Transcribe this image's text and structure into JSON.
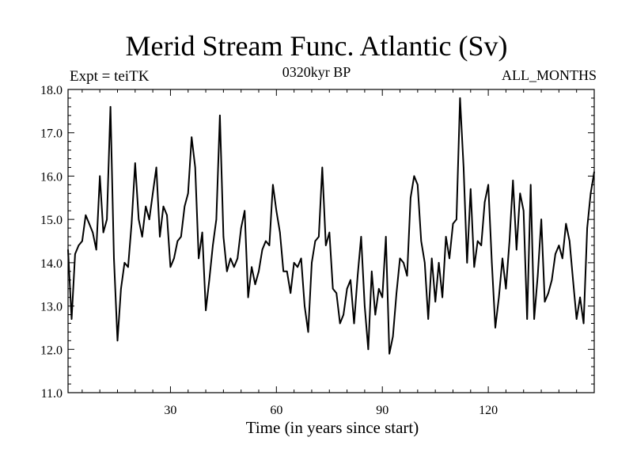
{
  "chart_data": {
    "type": "line",
    "title": "Merid Stream Func. Atlantic (Sv)",
    "subtitle_left": "Expt = teiTK",
    "subtitle_center": "0320kyr BP",
    "subtitle_right": "ALL_MONTHS",
    "xlabel": "Time (in years since start)",
    "ylabel": "",
    "xlim": [
      1,
      150
    ],
    "ylim": [
      11.0,
      18.0
    ],
    "xticks": [
      30,
      60,
      90,
      120
    ],
    "xtick_labels": [
      "30",
      "60",
      "90",
      "120"
    ],
    "yticks": [
      11.0,
      12.0,
      13.0,
      14.0,
      15.0,
      16.0,
      17.0,
      18.0
    ],
    "ytick_labels": [
      "11.0",
      "12.0",
      "13.0",
      "14.0",
      "15.0",
      "16.0",
      "17.0",
      "18.0"
    ],
    "grid": false,
    "series": [
      {
        "name": "Merid Stream Func. Atlantic",
        "color": "#000000",
        "x": [
          1,
          2,
          3,
          4,
          5,
          6,
          7,
          8,
          9,
          10,
          11,
          12,
          13,
          14,
          15,
          16,
          17,
          18,
          19,
          20,
          21,
          22,
          23,
          24,
          25,
          26,
          27,
          28,
          29,
          30,
          31,
          32,
          33,
          34,
          35,
          36,
          37,
          38,
          39,
          40,
          41,
          42,
          43,
          44,
          45,
          46,
          47,
          48,
          49,
          50,
          51,
          52,
          53,
          54,
          55,
          56,
          57,
          58,
          59,
          60,
          61,
          62,
          63,
          64,
          65,
          66,
          67,
          68,
          69,
          70,
          71,
          72,
          73,
          74,
          75,
          76,
          77,
          78,
          79,
          80,
          81,
          82,
          83,
          84,
          85,
          86,
          87,
          88,
          89,
          90,
          91,
          92,
          93,
          94,
          95,
          96,
          97,
          98,
          99,
          100,
          101,
          102,
          103,
          104,
          105,
          106,
          107,
          108,
          109,
          110,
          111,
          112,
          113,
          114,
          115,
          116,
          117,
          118,
          119,
          120,
          121,
          122,
          123,
          124,
          125,
          126,
          127,
          128,
          129,
          130,
          131,
          132,
          133,
          134,
          135,
          136,
          137,
          138,
          139,
          140,
          141,
          142,
          143,
          144,
          145,
          146,
          147,
          148,
          149,
          150
        ],
        "values": [
          14.3,
          12.7,
          14.2,
          14.4,
          14.5,
          15.1,
          14.9,
          14.7,
          14.3,
          16.0,
          14.7,
          15.0,
          17.6,
          14.1,
          12.2,
          13.4,
          14.0,
          13.9,
          14.9,
          16.3,
          15.0,
          14.6,
          15.3,
          15.0,
          15.6,
          16.2,
          14.6,
          15.3,
          15.1,
          13.9,
          14.1,
          14.5,
          14.6,
          15.3,
          15.6,
          16.9,
          16.2,
          14.1,
          14.7,
          12.9,
          13.6,
          14.4,
          15.0,
          17.4,
          14.6,
          13.8,
          14.1,
          13.9,
          14.1,
          14.8,
          15.2,
          13.2,
          13.9,
          13.5,
          13.8,
          14.3,
          14.5,
          14.4,
          15.8,
          15.2,
          14.7,
          13.8,
          13.8,
          13.3,
          14.0,
          13.9,
          14.1,
          13.0,
          12.4,
          14.0,
          14.5,
          14.6,
          16.2,
          14.4,
          14.7,
          13.4,
          13.3,
          12.6,
          12.8,
          13.4,
          13.6,
          12.6,
          13.7,
          14.6,
          13.0,
          12.0,
          13.8,
          12.8,
          13.4,
          13.2,
          14.6,
          11.9,
          12.3,
          13.3,
          14.1,
          14.0,
          13.7,
          15.5,
          16.0,
          15.8,
          14.5,
          14.0,
          12.7,
          14.1,
          13.1,
          14.0,
          13.2,
          14.6,
          14.1,
          14.9,
          15.0,
          17.8,
          16.2,
          14.0,
          15.7,
          13.9,
          14.5,
          14.4,
          15.4,
          15.8,
          14.0,
          12.5,
          13.2,
          14.1,
          13.4,
          14.5,
          15.9,
          14.3,
          15.6,
          15.2,
          12.7,
          15.8,
          12.7,
          13.7,
          15.0,
          13.1,
          13.3,
          13.6,
          14.2,
          14.4,
          14.1,
          14.9,
          14.5,
          13.6,
          12.7,
          13.2,
          12.6,
          14.8,
          15.6,
          16.1
        ]
      }
    ]
  }
}
